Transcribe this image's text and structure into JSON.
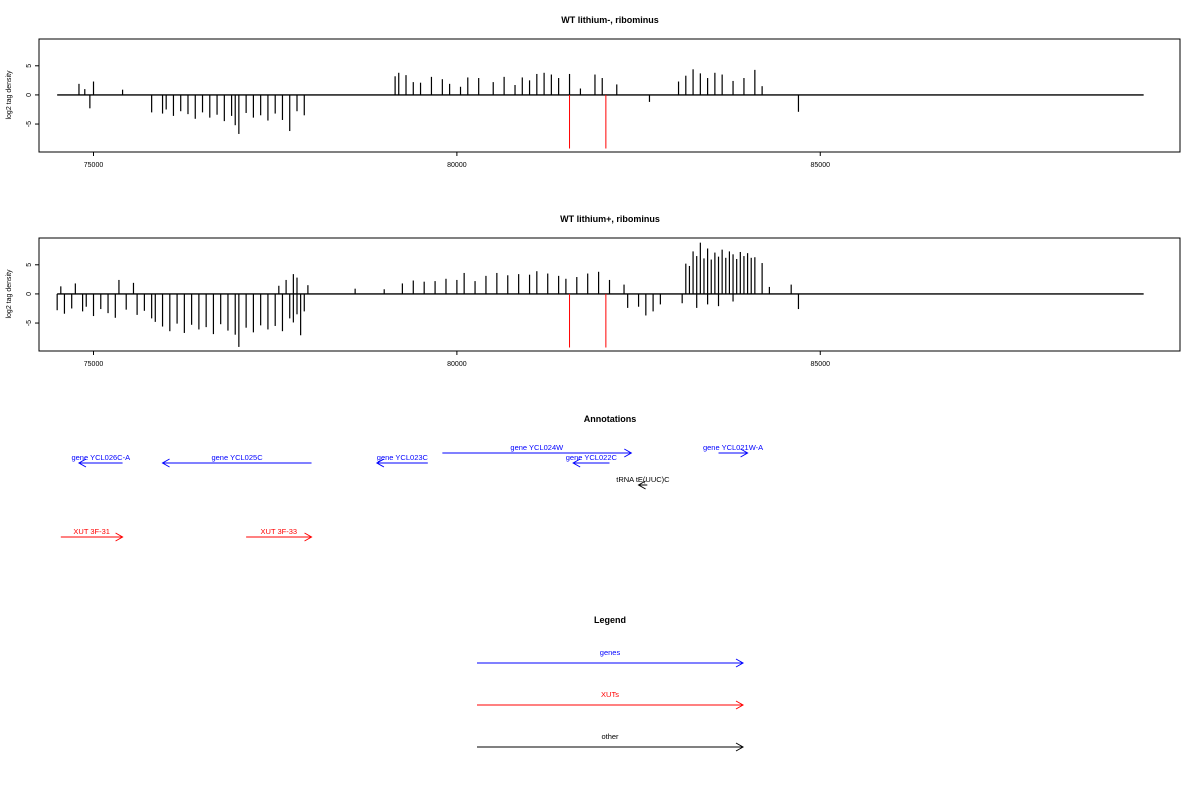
{
  "chart_data": [
    {
      "type": "bar",
      "title": "WT lithium-, ribominus",
      "ylabel": "log2 tag density",
      "xlabel": "",
      "xlim": [
        74250,
        89950
      ],
      "ylim": [
        -9.8,
        9.6
      ],
      "xticks": [
        75000,
        80000,
        85000
      ],
      "yticks": [
        -5,
        0,
        5
      ],
      "grid": false,
      "highlight_lines": [
        81550,
        82050
      ],
      "bars": [
        [
          74800,
          1.9
        ],
        [
          74880,
          1.0
        ],
        [
          74950,
          -2.3
        ],
        [
          75000,
          2.3
        ],
        [
          75400,
          0.9
        ],
        [
          75800,
          -3.0
        ],
        [
          75950,
          -3.2
        ],
        [
          76000,
          -2.5
        ],
        [
          76100,
          -3.6
        ],
        [
          76200,
          -2.8
        ],
        [
          76300,
          -3.3
        ],
        [
          76400,
          -4.1
        ],
        [
          76500,
          -3.0
        ],
        [
          76600,
          -3.9
        ],
        [
          76700,
          -3.4
        ],
        [
          76800,
          -4.5
        ],
        [
          76900,
          -3.6
        ],
        [
          76950,
          -5.2
        ],
        [
          77000,
          -6.7
        ],
        [
          77100,
          -3.1
        ],
        [
          77200,
          -3.9
        ],
        [
          77300,
          -3.5
        ],
        [
          77400,
          -4.4
        ],
        [
          77500,
          -3.2
        ],
        [
          77600,
          -4.3
        ],
        [
          77700,
          -6.2
        ],
        [
          77800,
          -2.8
        ],
        [
          77900,
          -3.5
        ],
        [
          79150,
          3.2
        ],
        [
          79200,
          3.8
        ],
        [
          79300,
          3.4
        ],
        [
          79400,
          2.2
        ],
        [
          79500,
          2.1
        ],
        [
          79650,
          3.1
        ],
        [
          79800,
          2.7
        ],
        [
          79900,
          1.9
        ],
        [
          80050,
          1.4
        ],
        [
          80150,
          3.0
        ],
        [
          80300,
          2.9
        ],
        [
          80500,
          2.2
        ],
        [
          80650,
          3.1
        ],
        [
          80800,
          1.7
        ],
        [
          80900,
          3.0
        ],
        [
          81000,
          2.5
        ],
        [
          81100,
          3.6
        ],
        [
          81200,
          3.8
        ],
        [
          81300,
          3.5
        ],
        [
          81400,
          2.9
        ],
        [
          81550,
          3.6
        ],
        [
          81700,
          1.1
        ],
        [
          81900,
          3.5
        ],
        [
          82000,
          2.9
        ],
        [
          82200,
          1.8
        ],
        [
          82650,
          -1.2
        ],
        [
          83050,
          2.3
        ],
        [
          83150,
          3.3
        ],
        [
          83250,
          4.4
        ],
        [
          83350,
          3.7
        ],
        [
          83450,
          2.9
        ],
        [
          83550,
          3.8
        ],
        [
          83650,
          3.5
        ],
        [
          83800,
          2.4
        ],
        [
          83950,
          2.9
        ],
        [
          84100,
          4.3
        ],
        [
          84200,
          1.5
        ],
        [
          84700,
          -2.9
        ]
      ]
    },
    {
      "type": "bar",
      "title": "WT lithium+, ribominus",
      "ylabel": "log2 tag density",
      "xlabel": "",
      "xlim": [
        74250,
        89950
      ],
      "ylim": [
        -9.8,
        9.6
      ],
      "xticks": [
        75000,
        80000,
        85000
      ],
      "yticks": [
        -5,
        0,
        5
      ],
      "grid": false,
      "highlight_lines": [
        81550,
        82050
      ],
      "bars": [
        [
          74500,
          -2.8
        ],
        [
          74550,
          1.3
        ],
        [
          74600,
          -3.4
        ],
        [
          74700,
          -2.5
        ],
        [
          74750,
          1.8
        ],
        [
          74850,
          -3.0
        ],
        [
          74900,
          -2.2
        ],
        [
          75000,
          -3.8
        ],
        [
          75100,
          -2.6
        ],
        [
          75200,
          -3.3
        ],
        [
          75300,
          -4.1
        ],
        [
          75350,
          2.4
        ],
        [
          75450,
          -2.7
        ],
        [
          75550,
          1.9
        ],
        [
          75600,
          -3.6
        ],
        [
          75700,
          -2.9
        ],
        [
          75800,
          -4.2
        ],
        [
          75850,
          -4.8
        ],
        [
          75950,
          -5.6
        ],
        [
          76050,
          -6.4
        ],
        [
          76150,
          -5.1
        ],
        [
          76250,
          -6.7
        ],
        [
          76350,
          -5.3
        ],
        [
          76450,
          -6.1
        ],
        [
          76550,
          -5.7
        ],
        [
          76650,
          -6.9
        ],
        [
          76750,
          -5.2
        ],
        [
          76850,
          -6.3
        ],
        [
          76950,
          -7.0
        ],
        [
          77000,
          -9.1
        ],
        [
          77100,
          -5.8
        ],
        [
          77200,
          -6.6
        ],
        [
          77300,
          -5.4
        ],
        [
          77400,
          -6.1
        ],
        [
          77500,
          -5.5
        ],
        [
          77600,
          -6.4
        ],
        [
          77700,
          -4.2
        ],
        [
          77750,
          -4.9
        ],
        [
          77800,
          -3.5
        ],
        [
          77850,
          -7.1
        ],
        [
          77900,
          -3.0
        ],
        [
          77550,
          1.4
        ],
        [
          77650,
          2.4
        ],
        [
          77750,
          3.4
        ],
        [
          77800,
          2.8
        ],
        [
          77950,
          1.5
        ],
        [
          78600,
          0.9
        ],
        [
          79000,
          0.8
        ],
        [
          79250,
          1.8
        ],
        [
          79400,
          2.3
        ],
        [
          79550,
          2.1
        ],
        [
          79700,
          2.2
        ],
        [
          79850,
          2.6
        ],
        [
          80000,
          2.4
        ],
        [
          80100,
          3.6
        ],
        [
          80250,
          2.2
        ],
        [
          80400,
          3.1
        ],
        [
          80550,
          3.6
        ],
        [
          80700,
          3.2
        ],
        [
          80850,
          3.4
        ],
        [
          81000,
          3.3
        ],
        [
          81100,
          3.9
        ],
        [
          81250,
          3.5
        ],
        [
          81400,
          3.1
        ],
        [
          81500,
          2.6
        ],
        [
          81650,
          2.9
        ],
        [
          81800,
          3.5
        ],
        [
          81950,
          3.8
        ],
        [
          82100,
          2.4
        ],
        [
          82300,
          1.6
        ],
        [
          82350,
          -2.4
        ],
        [
          82500,
          -2.2
        ],
        [
          82600,
          -3.7
        ],
        [
          82700,
          -3.0
        ],
        [
          82800,
          -1.8
        ],
        [
          83150,
          5.2
        ],
        [
          83200,
          4.8
        ],
        [
          83250,
          7.3
        ],
        [
          83300,
          6.5
        ],
        [
          83350,
          8.8
        ],
        [
          83400,
          6.1
        ],
        [
          83450,
          7.8
        ],
        [
          83500,
          5.9
        ],
        [
          83550,
          7.1
        ],
        [
          83600,
          6.4
        ],
        [
          83650,
          7.6
        ],
        [
          83700,
          6.2
        ],
        [
          83750,
          7.3
        ],
        [
          83800,
          6.8
        ],
        [
          83850,
          6.0
        ],
        [
          83900,
          7.2
        ],
        [
          83950,
          6.5
        ],
        [
          84000,
          7.0
        ],
        [
          84050,
          6.2
        ],
        [
          84100,
          6.3
        ],
        [
          84200,
          5.3
        ],
        [
          84300,
          1.2
        ],
        [
          84600,
          1.6
        ],
        [
          84700,
          -2.6
        ],
        [
          83100,
          -1.6
        ],
        [
          83300,
          -2.4
        ],
        [
          83450,
          -1.8
        ],
        [
          83600,
          -2.1
        ],
        [
          83800,
          -1.3
        ]
      ]
    },
    {
      "type": "other",
      "title": "Annotations",
      "xlim": [
        74250,
        89950
      ],
      "features": [
        {
          "label": "gene YCL026C-A",
          "start": 74800,
          "end": 75400,
          "strand": "-",
          "row": 2,
          "category": "gene"
        },
        {
          "label": "gene YCL025C",
          "start": 75950,
          "end": 78000,
          "strand": "-",
          "row": 2,
          "category": "gene"
        },
        {
          "label": "gene YCL024W",
          "start": 79800,
          "end": 82400,
          "strand": "+",
          "row": 1,
          "category": "gene"
        },
        {
          "label": "gene YCL023C",
          "start": 78900,
          "end": 79600,
          "strand": "-",
          "row": 2,
          "category": "gene"
        },
        {
          "label": "gene YCL022C",
          "start": 81600,
          "end": 82100,
          "strand": "-",
          "row": 2,
          "category": "gene"
        },
        {
          "label": "gene YCL021W-A",
          "start": 83600,
          "end": 84000,
          "strand": "+",
          "row": 1,
          "category": "gene"
        },
        {
          "label": "tRNA tE(UUC)C",
          "start": 82500,
          "end": 82620,
          "strand": "-",
          "row": 3,
          "category": "other"
        },
        {
          "label": "XUT 3F-31",
          "start": 74550,
          "end": 75400,
          "strand": "+",
          "row": 4,
          "category": "XUT"
        },
        {
          "label": "XUT 3F-33",
          "start": 77100,
          "end": 78000,
          "strand": "+",
          "row": 4,
          "category": "XUT"
        }
      ]
    },
    {
      "type": "other",
      "title": "Legend",
      "entries": [
        {
          "label": "genes",
          "category": "gene"
        },
        {
          "label": "XUTs",
          "category": "XUT"
        },
        {
          "label": "other",
          "category": "other"
        }
      ]
    }
  ],
  "colors": {
    "gene": "#0000ff",
    "XUT": "#ff0000",
    "other": "#000000",
    "highlight": "#ff0000",
    "bar": "#000000"
  }
}
